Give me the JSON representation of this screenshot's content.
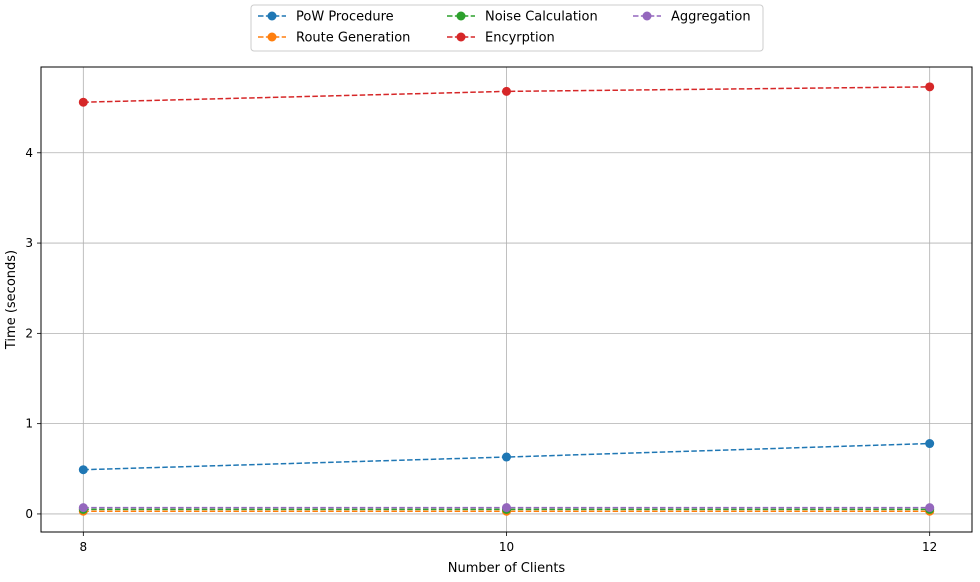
{
  "chart_data": {
    "type": "line",
    "title": "",
    "xlabel": "Number of Clients",
    "ylabel": "Time (seconds)",
    "x": [
      8,
      10,
      12
    ],
    "xticks": [
      "8",
      "10",
      "12"
    ],
    "yticks": [
      "0",
      "1",
      "2",
      "3",
      "4"
    ],
    "xlim": [
      7.8,
      12.2
    ],
    "ylim": [
      -0.2,
      4.95
    ],
    "grid": true,
    "legend_position": "top-center",
    "line_style": "dashed",
    "marker": "circle",
    "series": [
      {
        "name": "PoW Procedure",
        "color": "#1f77b4",
        "values": [
          0.49,
          0.63,
          0.78
        ]
      },
      {
        "name": "Route Generation",
        "color": "#ff7f0e",
        "values": [
          0.03,
          0.03,
          0.03
        ]
      },
      {
        "name": "Noise Calculation",
        "color": "#2ca02c",
        "values": [
          0.05,
          0.05,
          0.05
        ]
      },
      {
        "name": "Encyrption",
        "color": "#d62728",
        "values": [
          4.56,
          4.68,
          4.73
        ]
      },
      {
        "name": "Aggregation",
        "color": "#9467bd",
        "values": [
          0.07,
          0.07,
          0.07
        ]
      }
    ]
  }
}
